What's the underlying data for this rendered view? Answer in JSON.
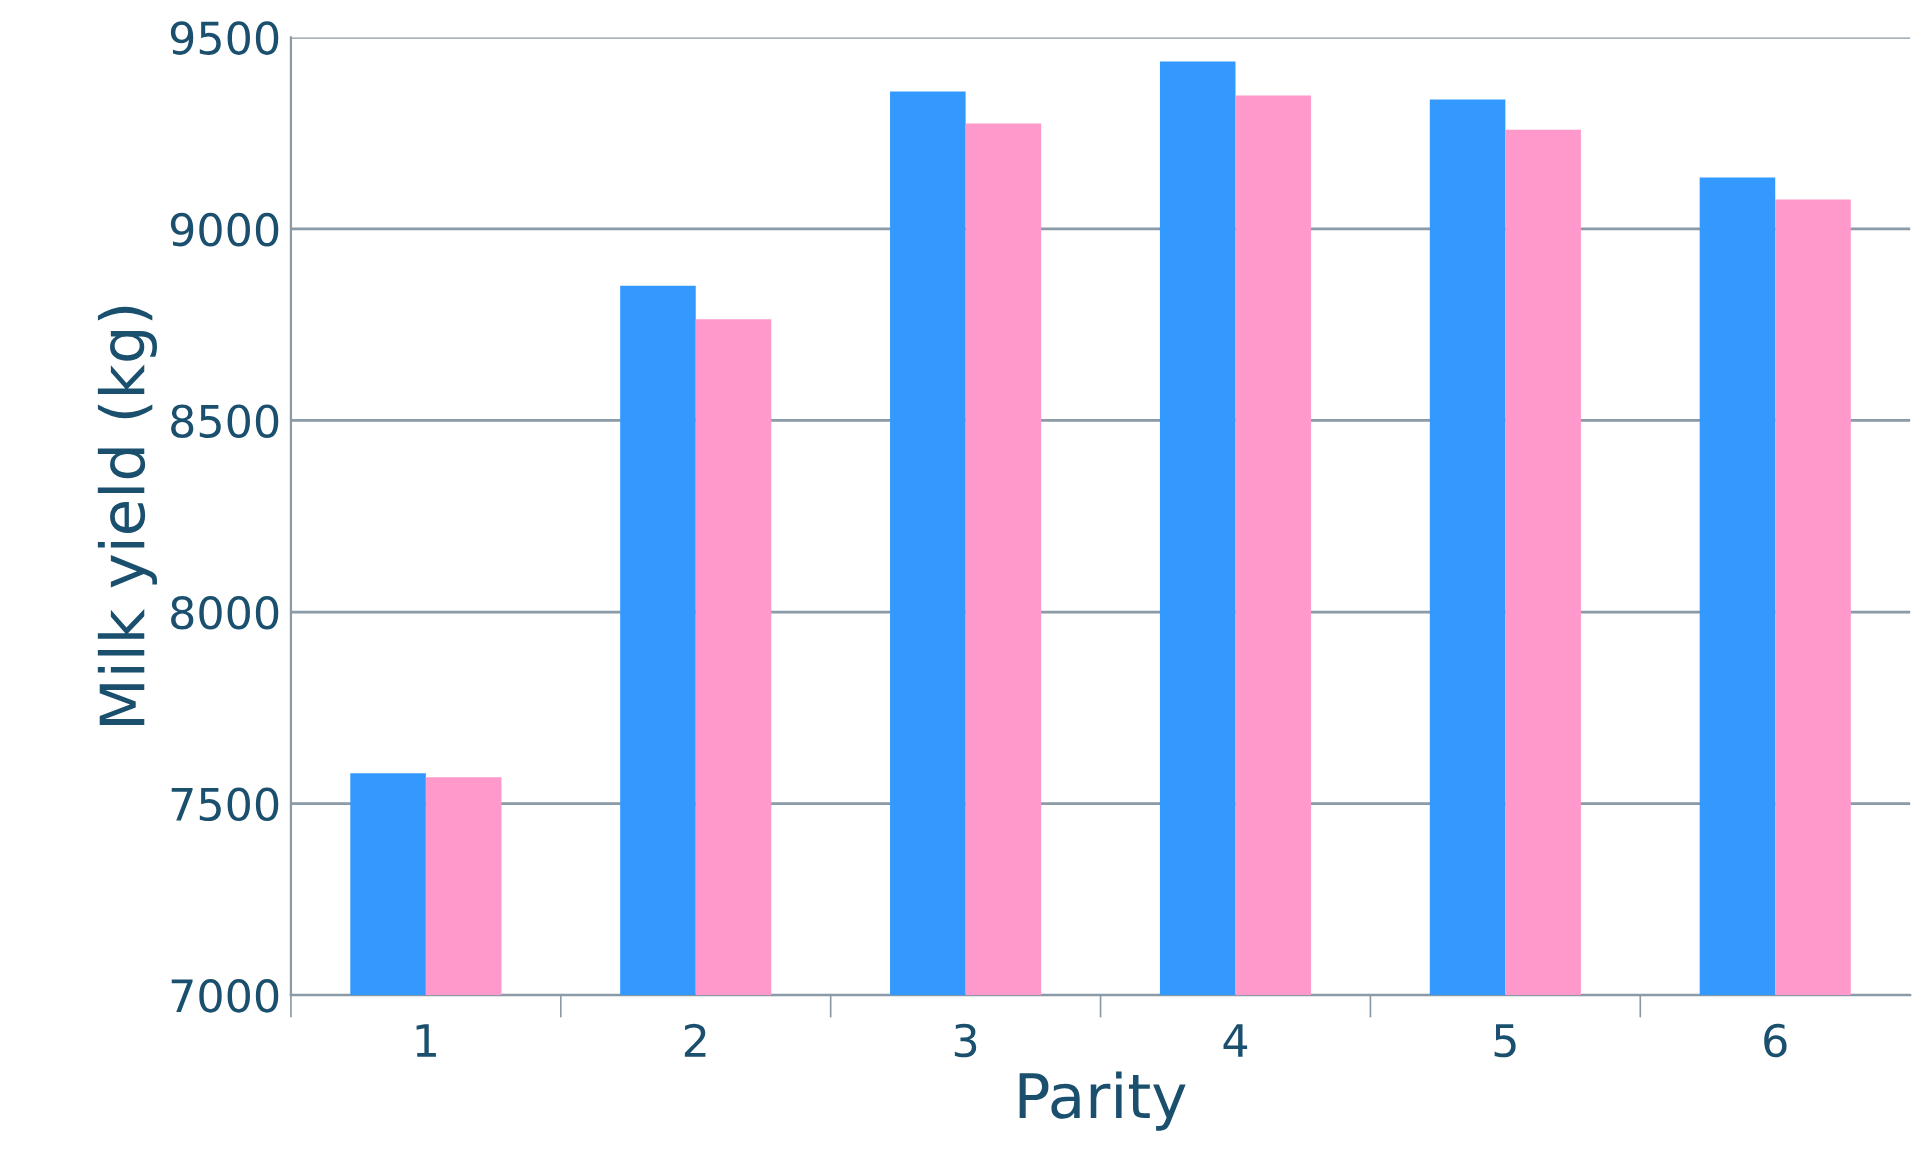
{
  "chart_data": {
    "type": "bar",
    "xlabel": "Parity",
    "ylabel": "Milk yield (kg)",
    "categories": [
      "1",
      "2",
      "3",
      "4",
      "5",
      "6"
    ],
    "series": [
      {
        "color": "#3399ff",
        "values": [
          7579,
          8852,
          9359,
          9437,
          9338,
          9134
        ]
      },
      {
        "color": "#ff99cc",
        "values": [
          7569,
          8764,
          9275,
          9348,
          9259,
          9077
        ]
      }
    ],
    "ylim": [
      7000,
      9500
    ],
    "yticks": [
      7000,
      7500,
      8000,
      8500,
      9000,
      9500
    ],
    "grid": "y",
    "legend": false
  }
}
